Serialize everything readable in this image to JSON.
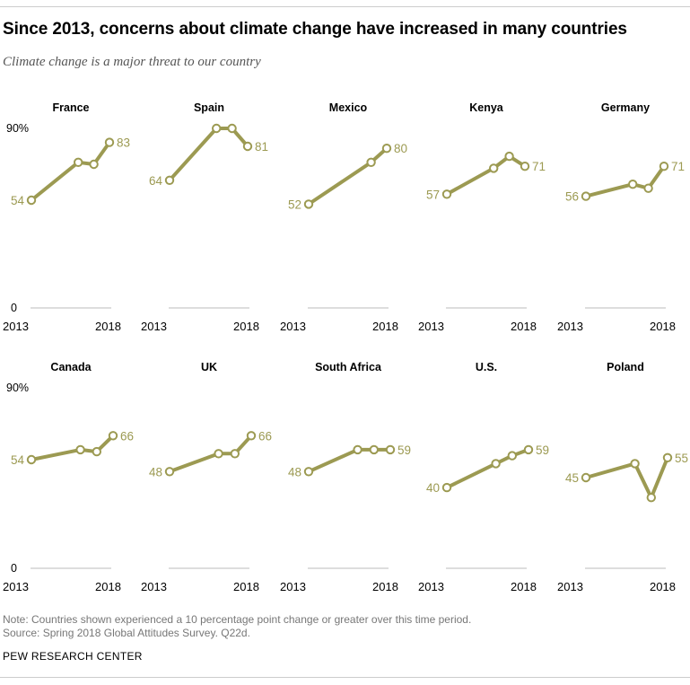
{
  "header": {
    "title": "Since 2013, concerns about climate change have increased in many countries",
    "subtitle": "Climate change is a major threat to our country"
  },
  "footer": {
    "note": "Note: Countries shown experienced a 10 percentage point change or greater over this time period.",
    "source": "Source: Spring 2018 Global Attitudes Survey. Q22d.",
    "brand": "PEW RESEARCH CENTER"
  },
  "colors": {
    "line": "#9c9a52",
    "label": "#9c9a52",
    "baseline": "#bbbbbb"
  },
  "axis_labels": {
    "top": "90%",
    "bottom": "0",
    "start": "2013",
    "end": "2018"
  },
  "chart_data": {
    "type": "line",
    "ylim": [
      0,
      90
    ],
    "xlim": [
      2013,
      2018
    ],
    "grid": false,
    "panels": [
      {
        "name": "France",
        "points": [
          [
            2013,
            54
          ],
          [
            2016,
            73
          ],
          [
            2017,
            72
          ],
          [
            2018,
            83
          ]
        ],
        "first_label": "54",
        "last_label": "83"
      },
      {
        "name": "Spain",
        "points": [
          [
            2013,
            64
          ],
          [
            2016,
            90
          ],
          [
            2017,
            90
          ],
          [
            2018,
            81
          ]
        ],
        "first_label": "64",
        "last_label": "81"
      },
      {
        "name": "Mexico",
        "points": [
          [
            2013,
            52
          ],
          [
            2017,
            73
          ],
          [
            2018,
            80
          ]
        ],
        "first_label": "52",
        "last_label": "80"
      },
      {
        "name": "Kenya",
        "points": [
          [
            2013,
            57
          ],
          [
            2016,
            70
          ],
          [
            2017,
            76
          ],
          [
            2018,
            71
          ]
        ],
        "first_label": "57",
        "last_label": "71"
      },
      {
        "name": "Germany",
        "points": [
          [
            2013,
            56
          ],
          [
            2016,
            62
          ],
          [
            2017,
            60
          ],
          [
            2018,
            71
          ]
        ],
        "first_label": "56",
        "last_label": "71"
      },
      {
        "name": "Canada",
        "points": [
          [
            2013,
            54
          ],
          [
            2016,
            59
          ],
          [
            2017,
            58
          ],
          [
            2018,
            66
          ]
        ],
        "first_label": "54",
        "last_label": "66"
      },
      {
        "name": "UK",
        "points": [
          [
            2013,
            48
          ],
          [
            2016,
            57
          ],
          [
            2017,
            57
          ],
          [
            2018,
            66
          ]
        ],
        "first_label": "48",
        "last_label": "66"
      },
      {
        "name": "South Africa",
        "points": [
          [
            2013,
            48
          ],
          [
            2016,
            59
          ],
          [
            2017,
            59
          ],
          [
            2018,
            59
          ]
        ],
        "first_label": "48",
        "last_label": "59"
      },
      {
        "name": "U.S.",
        "points": [
          [
            2013,
            40
          ],
          [
            2016,
            52
          ],
          [
            2017,
            56
          ],
          [
            2018,
            59
          ]
        ],
        "first_label": "40",
        "last_label": "59"
      },
      {
        "name": "Poland",
        "points": [
          [
            2013,
            45
          ],
          [
            2016,
            52
          ],
          [
            2017,
            35
          ],
          [
            2018,
            55
          ]
        ],
        "first_label": "45",
        "last_label": "55"
      }
    ]
  }
}
